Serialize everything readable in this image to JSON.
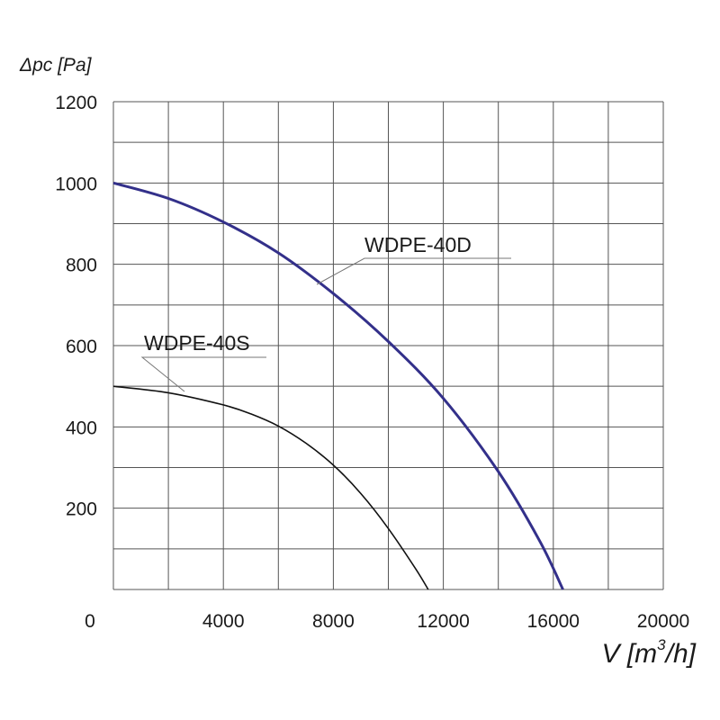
{
  "chart_data": {
    "type": "line",
    "ylabel": "Δpc [Pa]",
    "xlabel_main": "V [m",
    "xlabel_sup": "3",
    "xlabel_tail": "/h]",
    "xlim": [
      0,
      20000
    ],
    "ylim": [
      0,
      1200
    ],
    "x_ticks": [
      0,
      4000,
      8000,
      12000,
      16000,
      20000
    ],
    "x_tick_labels": [
      "0",
      "4000",
      "8000",
      "12000",
      "16000",
      "20000"
    ],
    "y_ticks": [
      200,
      400,
      600,
      800,
      1000,
      1200
    ],
    "y_tick_labels": [
      "200",
      "400",
      "600",
      "800",
      "1000",
      "1200"
    ],
    "grid": true,
    "series": [
      {
        "name": "WDPE-40D",
        "color": "#33308a",
        "label_anchor": [
          7500,
          760
        ],
        "points": [
          [
            0,
            1000
          ],
          [
            2000,
            962
          ],
          [
            4000,
            904
          ],
          [
            6000,
            828
          ],
          [
            8000,
            728
          ],
          [
            10000,
            610
          ],
          [
            12000,
            470
          ],
          [
            14000,
            290
          ],
          [
            15500,
            120
          ],
          [
            16350,
            0
          ]
        ]
      },
      {
        "name": "WDPE-40S",
        "color": "#111111",
        "label_anchor": [
          2500,
          480
        ],
        "points": [
          [
            0,
            500
          ],
          [
            2000,
            484
          ],
          [
            4000,
            454
          ],
          [
            5000,
            432
          ],
          [
            6000,
            402
          ],
          [
            7000,
            360
          ],
          [
            8000,
            306
          ],
          [
            9000,
            236
          ],
          [
            10000,
            150
          ],
          [
            11000,
            50
          ],
          [
            11450,
            0
          ]
        ]
      }
    ]
  }
}
